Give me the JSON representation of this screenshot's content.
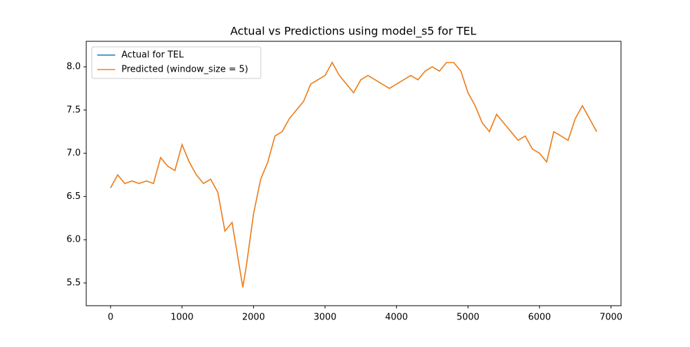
{
  "chart_data": {
    "type": "line",
    "title": "Actual vs Predictions using model_s5 for TEL",
    "x": [
      0,
      100,
      200,
      300,
      400,
      500,
      600,
      700,
      800,
      900,
      1000,
      1100,
      1200,
      1300,
      1400,
      1500,
      1600,
      1700,
      1800,
      1850,
      1900,
      2000,
      2100,
      2200,
      2300,
      2400,
      2500,
      2600,
      2700,
      2800,
      2900,
      3000,
      3100,
      3200,
      3300,
      3400,
      3500,
      3600,
      3700,
      3800,
      3900,
      4000,
      4100,
      4200,
      4300,
      4400,
      4500,
      4600,
      4700,
      4800,
      4900,
      5000,
      5100,
      5200,
      5300,
      5400,
      5500,
      5600,
      5700,
      5800,
      5900,
      6000,
      6100,
      6200,
      6300,
      6400,
      6500,
      6600,
      6700,
      6800
    ],
    "series": [
      {
        "name": "Actual for TEL",
        "color": "#1f77b4",
        "values": [
          6.6,
          6.75,
          6.65,
          6.68,
          6.65,
          6.68,
          6.65,
          6.95,
          6.85,
          6.8,
          7.1,
          6.9,
          6.75,
          6.65,
          6.7,
          6.55,
          6.1,
          6.2,
          5.7,
          5.45,
          5.7,
          6.3,
          6.7,
          6.9,
          7.2,
          7.25,
          7.4,
          7.5,
          7.6,
          7.8,
          7.85,
          7.9,
          8.05,
          7.9,
          7.8,
          7.7,
          7.85,
          7.9,
          7.85,
          7.8,
          7.75,
          7.8,
          7.85,
          7.9,
          7.85,
          7.95,
          8.0,
          7.95,
          8.05,
          8.05,
          7.95,
          7.7,
          7.55,
          7.35,
          7.25,
          7.45,
          7.35,
          7.25,
          7.15,
          7.2,
          7.05,
          7.0,
          6.9,
          7.25,
          7.2,
          7.15,
          7.4,
          7.55,
          7.4,
          7.25
        ]
      },
      {
        "name": "Predicted (window_size = 5)",
        "color": "#ff7f0e",
        "values": [
          6.6,
          6.75,
          6.65,
          6.68,
          6.65,
          6.68,
          6.65,
          6.95,
          6.85,
          6.8,
          7.1,
          6.9,
          6.75,
          6.65,
          6.7,
          6.55,
          6.1,
          6.2,
          5.7,
          5.45,
          5.7,
          6.3,
          6.7,
          6.9,
          7.2,
          7.25,
          7.4,
          7.5,
          7.6,
          7.8,
          7.85,
          7.9,
          8.05,
          7.9,
          7.8,
          7.7,
          7.85,
          7.9,
          7.85,
          7.8,
          7.75,
          7.8,
          7.85,
          7.9,
          7.85,
          7.95,
          8.0,
          7.95,
          8.05,
          8.05,
          7.95,
          7.7,
          7.55,
          7.35,
          7.25,
          7.45,
          7.35,
          7.25,
          7.15,
          7.2,
          7.05,
          7.0,
          6.9,
          7.25,
          7.2,
          7.15,
          7.4,
          7.55,
          7.4,
          7.25
        ]
      }
    ],
    "xlim": [
      -340,
      7140
    ],
    "ylim": [
      5.237,
      8.295
    ],
    "xticks": [
      0,
      1000,
      2000,
      3000,
      4000,
      5000,
      6000,
      7000
    ],
    "yticks": [
      5.5,
      {
        "value": 6,
        "label": "6.0"
      },
      6.5,
      {
        "value": 7,
        "label": "7.0"
      },
      7.5,
      {
        "value": 8,
        "label": "8.0"
      }
    ],
    "legend": "upper left",
    "grid": false
  }
}
